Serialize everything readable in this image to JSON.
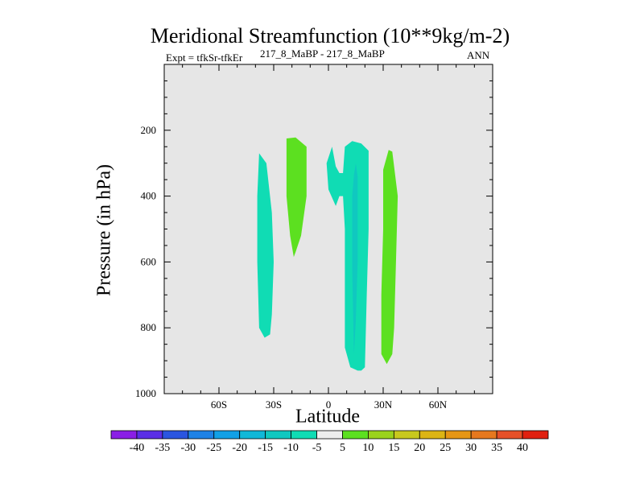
{
  "chart_data": {
    "type": "contour",
    "title": "Meridional Streamfunction (10**9kg/m-2)",
    "left_label": "Expt = tfkSr-tfkEr",
    "center_label": "217_8_MaBP - 217_8_MaBP",
    "right_label": "ANN",
    "xlabel": "Latitude",
    "ylabel": "Pressure (in hPa)",
    "xlim": [
      -90,
      90
    ],
    "ylim": [
      1000,
      0
    ],
    "x_ticks": [
      -60,
      -30,
      0,
      30,
      60
    ],
    "x_tick_labels": [
      "60S",
      "30S",
      "0",
      "30N",
      "60N"
    ],
    "y_ticks": [
      200,
      400,
      600,
      800,
      1000
    ],
    "y_tick_labels": [
      "200",
      "400",
      "600",
      "800",
      "1000"
    ],
    "background_color": "#e6e6e6",
    "colorbar": {
      "labels": [
        "-40",
        "-35",
        "-30",
        "-25",
        "-20",
        "-15",
        "-10",
        "-5",
        "5",
        "10",
        "15",
        "20",
        "25",
        "30",
        "35",
        "40"
      ],
      "colors": [
        "#8a1ee6",
        "#5a2ee6",
        "#2a55e0",
        "#1e82e6",
        "#12a0e6",
        "#10b8d8",
        "#10c8c0",
        "#10dcb4",
        "#eeeeee",
        "#5ce020",
        "#9ad21c",
        "#c8c81e",
        "#dcb414",
        "#e69614",
        "#e6781e",
        "#e65028",
        "#e02010"
      ]
    },
    "regions": [
      {
        "name": "negative-cell-30S",
        "level": "-10 to -5",
        "color": "#10dcb4",
        "points": [
          [
            -38,
            270
          ],
          [
            -34,
            300
          ],
          [
            -31,
            450
          ],
          [
            -30,
            600
          ],
          [
            -31,
            760
          ],
          [
            -32,
            820
          ],
          [
            -35,
            830
          ],
          [
            -38,
            800
          ],
          [
            -39,
            600
          ],
          [
            -39,
            400
          ]
        ]
      },
      {
        "name": "positive-cell-20S",
        "level": "5 to 10",
        "color": "#5ce020",
        "points": [
          [
            -23,
            225
          ],
          [
            -18,
            222
          ],
          [
            -12,
            250
          ],
          [
            -12,
            400
          ],
          [
            -15,
            520
          ],
          [
            -18,
            570
          ],
          [
            -19,
            585
          ],
          [
            -21,
            520
          ],
          [
            -23,
            400
          ]
        ]
      },
      {
        "name": "negative-cell-equator",
        "level": "-10 to -5",
        "color": "#10dcb4",
        "points": [
          [
            2,
            250
          ],
          [
            4,
            310
          ],
          [
            6,
            330
          ],
          [
            8,
            330
          ],
          [
            9,
            250
          ],
          [
            13,
            233
          ],
          [
            18,
            240
          ],
          [
            22,
            262
          ],
          [
            22,
            500
          ],
          [
            21,
            700
          ],
          [
            20,
            920
          ],
          [
            18,
            930
          ],
          [
            16,
            930
          ],
          [
            12,
            920
          ],
          [
            9,
            860
          ],
          [
            9,
            500
          ],
          [
            8,
            400
          ],
          [
            6,
            400
          ],
          [
            4,
            430
          ],
          [
            0,
            380
          ],
          [
            -1,
            300
          ]
        ]
      },
      {
        "name": "negative-core-equator",
        "level": "-15 to -10",
        "color": "#10c8c0",
        "points": [
          [
            14,
            335
          ],
          [
            15,
            300
          ],
          [
            16,
            340
          ],
          [
            16,
            600
          ],
          [
            15,
            780
          ],
          [
            14,
            880
          ],
          [
            13,
            620
          ],
          [
            13,
            400
          ]
        ]
      },
      {
        "name": "positive-cell-30N",
        "level": "5 to 10",
        "color": "#5ce020",
        "points": [
          [
            33,
            260
          ],
          [
            35,
            265
          ],
          [
            38,
            400
          ],
          [
            37,
            600
          ],
          [
            36,
            800
          ],
          [
            35,
            880
          ],
          [
            32,
            910
          ],
          [
            29,
            880
          ],
          [
            29,
            700
          ],
          [
            30,
            500
          ],
          [
            30,
            320
          ]
        ]
      }
    ]
  }
}
